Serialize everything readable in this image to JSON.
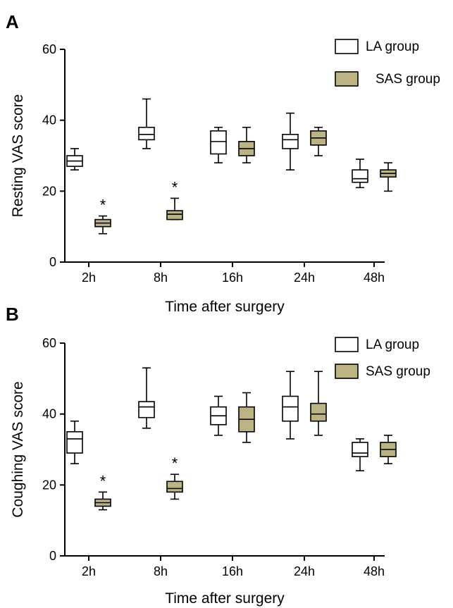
{
  "figure": {
    "panels": [
      "A",
      "B"
    ]
  },
  "colors": {
    "la_fill": "#ffffff",
    "sas_fill": "#bbb382",
    "stroke": "#000000"
  },
  "chart_data": [
    {
      "type": "box",
      "panel": "A",
      "xlabel": "Time after surgery",
      "ylabel": "Resting VAS score",
      "ylim": [
        0,
        60
      ],
      "yticks": [
        0,
        20,
        40,
        60
      ],
      "categories": [
        "2h",
        "8h",
        "16h",
        "24h",
        "48h"
      ],
      "legend": {
        "position": "top-right"
      },
      "series": [
        {
          "name": "LA group",
          "fill": "#ffffff",
          "boxes": [
            {
              "min": 26,
              "q1": 27,
              "median": 28.5,
              "q3": 30,
              "max": 32
            },
            {
              "min": 32,
              "q1": 34.5,
              "median": 36,
              "q3": 38,
              "max": 46
            },
            {
              "min": 28,
              "q1": 30.5,
              "median": 34,
              "q3": 37,
              "max": 38
            },
            {
              "min": 26,
              "q1": 32,
              "median": 34.5,
              "q3": 36,
              "max": 42
            },
            {
              "min": 21,
              "q1": 22.5,
              "median": 23.5,
              "q3": 26,
              "max": 29
            }
          ]
        },
        {
          "name": "SAS group",
          "fill": "#bbb382",
          "boxes": [
            {
              "min": 8,
              "q1": 10,
              "median": 11,
              "q3": 12,
              "max": 13
            },
            {
              "min": 12,
              "q1": 12,
              "median": 13.5,
              "q3": 14.5,
              "max": 18
            },
            {
              "min": 28,
              "q1": 30,
              "median": 32,
              "q3": 34,
              "max": 38
            },
            {
              "min": 30,
              "q1": 33,
              "median": 35,
              "q3": 37,
              "max": 38
            },
            {
              "min": 20,
              "q1": 24,
              "median": 25,
              "q3": 26,
              "max": 28
            }
          ]
        }
      ],
      "annotations": [
        {
          "text": "*",
          "category": "2h"
        },
        {
          "text": "*",
          "category": "8h"
        }
      ]
    },
    {
      "type": "box",
      "panel": "B",
      "xlabel": "Time after surgery",
      "ylabel": "Coughing VAS score",
      "ylim": [
        0,
        60
      ],
      "yticks": [
        0,
        20,
        40,
        60
      ],
      "categories": [
        "2h",
        "8h",
        "16h",
        "24h",
        "48h"
      ],
      "legend": {
        "position": "top-right"
      },
      "series": [
        {
          "name": "LA group",
          "fill": "#ffffff",
          "boxes": [
            {
              "min": 26,
              "q1": 29,
              "median": 33,
              "q3": 35,
              "max": 38
            },
            {
              "min": 36,
              "q1": 39,
              "median": 42,
              "q3": 43.5,
              "max": 53
            },
            {
              "min": 34,
              "q1": 37,
              "median": 39.5,
              "q3": 42,
              "max": 45
            },
            {
              "min": 33,
              "q1": 38,
              "median": 42,
              "q3": 45,
              "max": 52
            },
            {
              "min": 24,
              "q1": 28,
              "median": 29,
              "q3": 32,
              "max": 33
            }
          ]
        },
        {
          "name": "SAS group",
          "fill": "#bbb382",
          "boxes": [
            {
              "min": 13,
              "q1": 14,
              "median": 15,
              "q3": 16,
              "max": 18
            },
            {
              "min": 16,
              "q1": 18,
              "median": 19,
              "q3": 21,
              "max": 23
            },
            {
              "min": 32,
              "q1": 35,
              "median": 38.5,
              "q3": 42,
              "max": 46
            },
            {
              "min": 34,
              "q1": 38,
              "median": 40,
              "q3": 43,
              "max": 52
            },
            {
              "min": 26,
              "q1": 28,
              "median": 30,
              "q3": 32,
              "max": 34
            }
          ]
        }
      ],
      "annotations": [
        {
          "text": "*",
          "category": "2h"
        },
        {
          "text": "*",
          "category": "8h"
        }
      ]
    }
  ]
}
